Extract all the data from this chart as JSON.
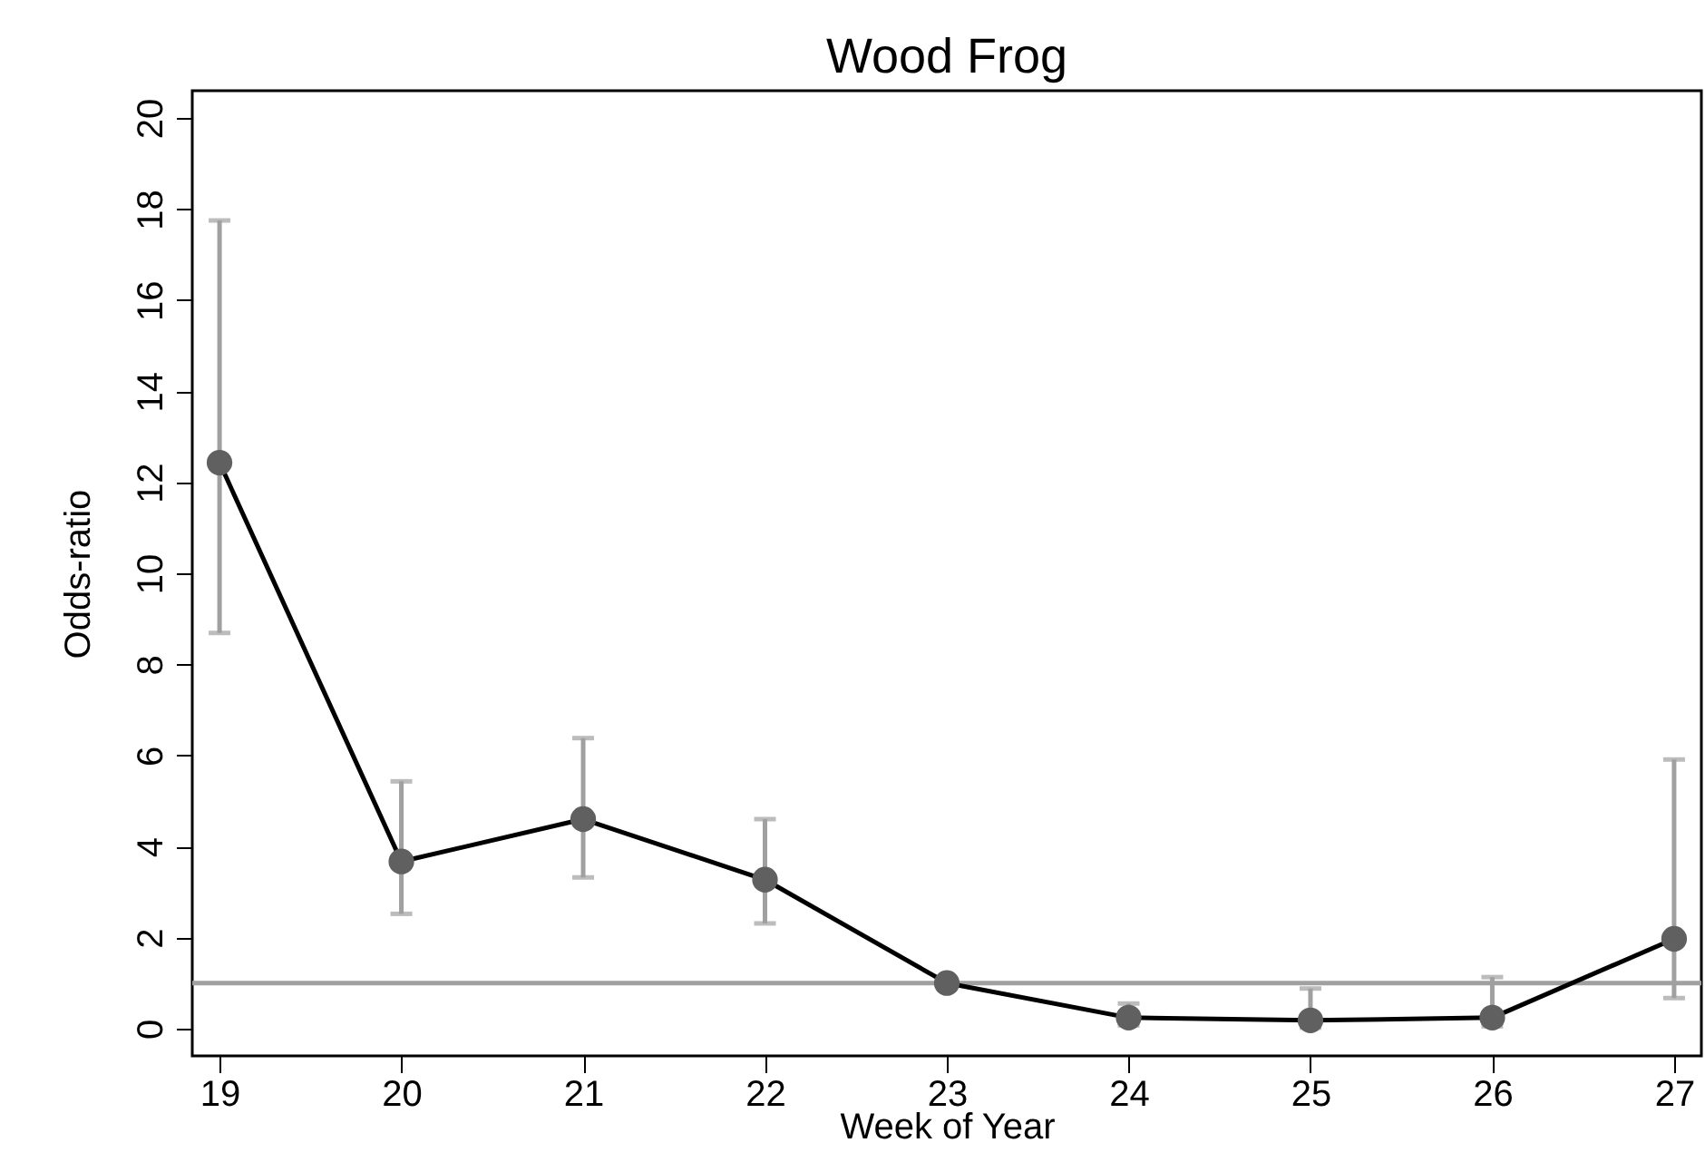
{
  "chart_data": {
    "type": "line",
    "title": "Wood Frog",
    "xlabel": "Week of Year",
    "ylabel": "Odds-ratio",
    "x": [
      19,
      20,
      21,
      22,
      23,
      24,
      25,
      26,
      27
    ],
    "series": [
      {
        "color": "#000000",
        "values": [
          12.43,
          3.67,
          4.6,
          3.27,
          1.0,
          0.24,
          0.18,
          0.24,
          1.97
        ],
        "errors": [
          [
            8.69,
            17.75
          ],
          [
            2.52,
            5.43
          ],
          [
            3.32,
            6.38
          ],
          [
            2.31,
            4.6
          ],
          null,
          [
            0.07,
            0.55
          ],
          [
            0.02,
            0.88
          ],
          [
            0.05,
            1.13
          ],
          [
            0.67,
            5.91
          ]
        ]
      }
    ],
    "xlim": [
      18.85,
      27.15
    ],
    "xticks": [
      19,
      20,
      21,
      22,
      23,
      24,
      25,
      26,
      27
    ],
    "ylim": [
      -0.6,
      20.6
    ],
    "yticks": [
      0,
      2,
      4,
      6,
      8,
      10,
      12,
      14,
      16,
      18,
      20
    ],
    "ref_lines": [
      {
        "axis": "y",
        "value": 1,
        "color": "#a0a0a0"
      }
    ],
    "marker": "circle",
    "grid": false
  }
}
